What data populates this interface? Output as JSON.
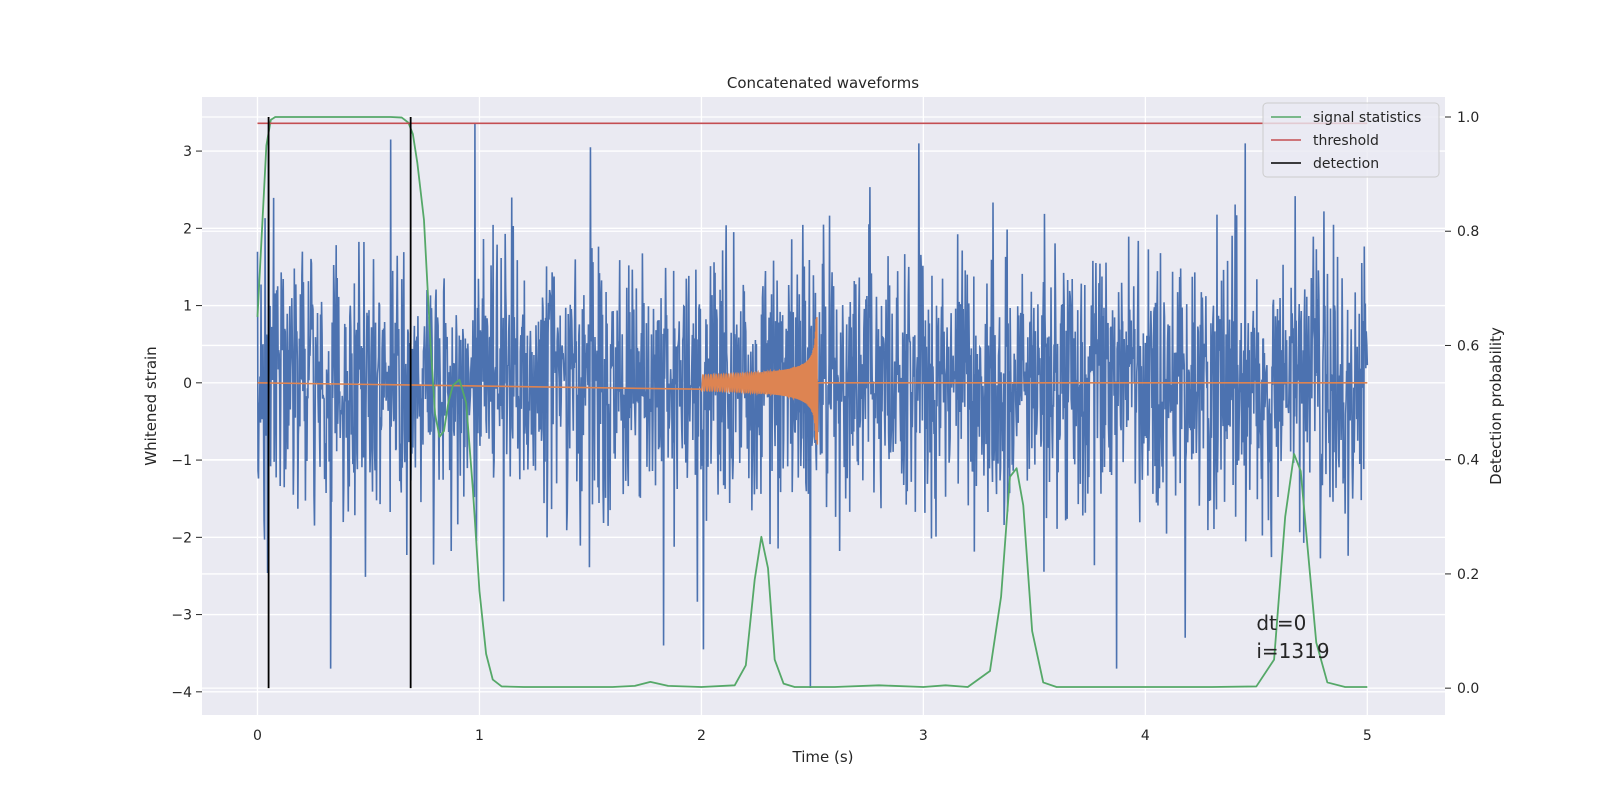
{
  "chart_data": {
    "type": "line",
    "title": "Concatenated waveforms",
    "xlabel": "Time (s)",
    "ylabel": "Whitened strain",
    "ylabel_right": "Detection probability",
    "xlim": [
      -0.25,
      5.35
    ],
    "ylim": [
      -4.3,
      3.7
    ],
    "ylim_right": [
      -0.047,
      1.035
    ],
    "x_ticks": [
      0,
      1,
      2,
      3,
      4,
      5
    ],
    "y_ticks": [
      -4,
      -3,
      -2,
      -1,
      0,
      1,
      2,
      3
    ],
    "y_ticks_right": [
      0.0,
      0.2,
      0.4,
      0.6,
      0.8,
      1.0
    ],
    "x_tick_labels": [
      "0",
      "1",
      "2",
      "3",
      "4",
      "5"
    ],
    "y_tick_labels": [
      "−4",
      "−3",
      "−2",
      "−1",
      "0",
      "1",
      "2",
      "3"
    ],
    "y_tick_labels_right": [
      "0.0",
      "0.2",
      "0.4",
      "0.6",
      "0.8",
      "1.0"
    ],
    "grid": true,
    "background": "#eaeaf2",
    "legend_placement": "top-right",
    "series": [
      {
        "name": "",
        "axis": "left",
        "color": "#4c72b0",
        "kind": "noise",
        "x_range": [
          0,
          5
        ],
        "typical_amplitude": 1.0,
        "range": [
          -3.95,
          3.35
        ],
        "peaks": [
          [
            0.05,
            3.35
          ],
          [
            0.6,
            3.15
          ],
          [
            0.98,
            3.35
          ],
          [
            1.5,
            3.05
          ],
          [
            2.98,
            3.1
          ],
          [
            4.45,
            3.1
          ],
          [
            0.33,
            -3.7
          ],
          [
            1.83,
            -3.4
          ],
          [
            2.01,
            -3.45
          ],
          [
            2.49,
            -3.95
          ],
          [
            3.87,
            -3.7
          ],
          [
            4.18,
            -3.3
          ]
        ]
      },
      {
        "name": "",
        "axis": "left",
        "color": "#dd8452",
        "kind": "chirp",
        "x_range": [
          0,
          5
        ],
        "chirp_start": 2.0,
        "chirp_end": 2.52,
        "start_amplitude": 0.1,
        "peak_amplitude": 0.85,
        "trough_amplitude": -0.8
      },
      {
        "name": "signal statistics",
        "axis": "right",
        "color": "#55a868",
        "x": [
          0.0,
          0.02,
          0.04,
          0.06,
          0.08,
          0.1,
          0.2,
          0.4,
          0.6,
          0.65,
          0.68,
          0.7,
          0.72,
          0.75,
          0.78,
          0.8,
          0.82,
          0.84,
          0.86,
          0.88,
          0.91,
          0.94,
          0.97,
          1.0,
          1.03,
          1.06,
          1.1,
          1.2,
          1.4,
          1.6,
          1.7,
          1.77,
          1.85,
          2.0,
          2.15,
          2.2,
          2.24,
          2.27,
          2.3,
          2.33,
          2.37,
          2.42,
          2.6,
          2.8,
          3.0,
          3.1,
          3.2,
          3.3,
          3.35,
          3.39,
          3.42,
          3.45,
          3.49,
          3.54,
          3.6,
          3.8,
          4.0,
          4.3,
          4.5,
          4.58,
          4.63,
          4.67,
          4.7,
          4.73,
          4.77,
          4.82,
          4.9,
          5.0
        ],
        "values": [
          0.65,
          0.8,
          0.95,
          0.995,
          1.0,
          1.0,
          1.0,
          1.0,
          1.0,
          0.999,
          0.99,
          0.97,
          0.92,
          0.82,
          0.6,
          0.48,
          0.44,
          0.45,
          0.5,
          0.53,
          0.54,
          0.5,
          0.35,
          0.17,
          0.06,
          0.015,
          0.003,
          0.002,
          0.002,
          0.002,
          0.004,
          0.011,
          0.004,
          0.002,
          0.005,
          0.04,
          0.19,
          0.265,
          0.21,
          0.05,
          0.008,
          0.002,
          0.002,
          0.005,
          0.002,
          0.005,
          0.002,
          0.03,
          0.16,
          0.37,
          0.385,
          0.32,
          0.1,
          0.01,
          0.002,
          0.002,
          0.002,
          0.002,
          0.003,
          0.05,
          0.3,
          0.41,
          0.38,
          0.25,
          0.08,
          0.01,
          0.002,
          0.002
        ]
      },
      {
        "name": "threshold",
        "axis": "right",
        "color": "#c44e52",
        "x": [
          0,
          5
        ],
        "values": [
          0.989,
          0.989
        ]
      },
      {
        "name": "detection",
        "axis": "right",
        "color": "#000000",
        "kind": "vertical-lines",
        "x_positions": [
          0.05,
          0.69
        ],
        "span": [
          0.0,
          1.0
        ]
      }
    ],
    "annotation": {
      "x": 4.5,
      "lines": [
        "dt=0",
        "i=1319"
      ]
    }
  }
}
